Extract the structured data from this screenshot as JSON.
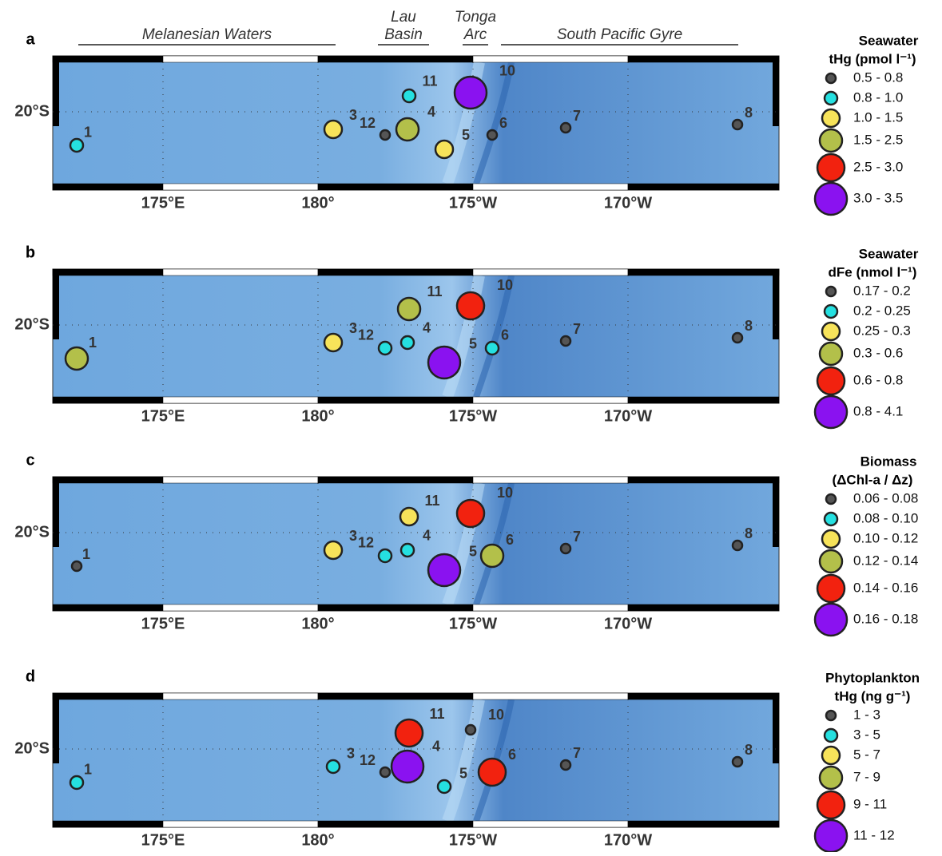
{
  "regions": [
    {
      "lines": [
        "Melanesian Waters"
      ]
    },
    {
      "lines": [
        "Lau",
        "Basin"
      ]
    },
    {
      "lines": [
        "Tonga",
        "Arc"
      ]
    },
    {
      "lines": [
        "South Pacific Gyre"
      ]
    }
  ],
  "lon_ticks": [
    "175°E",
    "180°",
    "175°W",
    "170°W"
  ],
  "lat_tick": "20°S",
  "panels": [
    {
      "label": "a",
      "legend_title": [
        "Seawater",
        "tHg (pmol l⁻¹)"
      ],
      "legend": [
        "0.5 - 0.8",
        "0.8 - 1.0",
        "1.0 - 1.5",
        "1.5 - 2.5",
        "2.5 - 3.0",
        "3.0 - 3.5"
      ],
      "stations": [
        {
          "label": "1",
          "legend_class": 1
        },
        {
          "label": "3",
          "legend_class": 2
        },
        {
          "label": "12",
          "legend_class": 0
        },
        {
          "label": "4",
          "legend_class": 3
        },
        {
          "label": "11",
          "legend_class": 1
        },
        {
          "label": "5",
          "legend_class": 2
        },
        {
          "label": "10",
          "legend_class": 5
        },
        {
          "label": "6",
          "legend_class": 0
        },
        {
          "label": "7",
          "legend_class": 0
        },
        {
          "label": "8",
          "legend_class": 0
        }
      ]
    },
    {
      "label": "b",
      "legend_title": [
        "Seawater",
        "dFe (nmol l⁻¹)"
      ],
      "legend": [
        "0.17 - 0.2",
        "0.2 - 0.25",
        "0.25 - 0.3",
        "0.3 - 0.6",
        "0.6 - 0.8",
        "0.8 - 4.1"
      ],
      "stations": [
        {
          "label": "1",
          "legend_class": 3
        },
        {
          "label": "3",
          "legend_class": 2
        },
        {
          "label": "12",
          "legend_class": 1
        },
        {
          "label": "4",
          "legend_class": 1
        },
        {
          "label": "11",
          "legend_class": 3
        },
        {
          "label": "5",
          "legend_class": 5
        },
        {
          "label": "10",
          "legend_class": 4
        },
        {
          "label": "6",
          "legend_class": 1
        },
        {
          "label": "7",
          "legend_class": 0
        },
        {
          "label": "8",
          "legend_class": 0
        }
      ]
    },
    {
      "label": "c",
      "legend_title": [
        "Biomass",
        "(ΔChl-a / Δz)"
      ],
      "legend": [
        "0.06 - 0.08",
        "0.08 - 0.10",
        "0.10 - 0.12",
        "0.12 - 0.14",
        "0.14 - 0.16",
        "0.16 - 0.18"
      ],
      "stations": [
        {
          "label": "1",
          "legend_class": 0
        },
        {
          "label": "3",
          "legend_class": 2
        },
        {
          "label": "12",
          "legend_class": 1
        },
        {
          "label": "4",
          "legend_class": 1
        },
        {
          "label": "11",
          "legend_class": 2
        },
        {
          "label": "5",
          "legend_class": 5
        },
        {
          "label": "10",
          "legend_class": 4
        },
        {
          "label": "6",
          "legend_class": 3
        },
        {
          "label": "7",
          "legend_class": 0
        },
        {
          "label": "8",
          "legend_class": 0
        }
      ]
    },
    {
      "label": "d",
      "legend_title": [
        "Phytoplankton",
        "tHg (ng g⁻¹)"
      ],
      "legend": [
        "1 - 3",
        "3 - 5",
        "5 - 7",
        "7 - 9",
        "9 - 11",
        "11 - 12"
      ],
      "stations": [
        {
          "label": "1",
          "legend_class": 1
        },
        {
          "label": "3",
          "legend_class": 1
        },
        {
          "label": "12",
          "legend_class": 0
        },
        {
          "label": "4",
          "legend_class": 5
        },
        {
          "label": "11",
          "legend_class": 4
        },
        {
          "label": "5",
          "legend_class": 1
        },
        {
          "label": "10",
          "legend_class": 0
        },
        {
          "label": "6",
          "legend_class": 4
        },
        {
          "label": "7",
          "legend_class": 0
        },
        {
          "label": "8",
          "legend_class": 0
        }
      ]
    }
  ]
}
